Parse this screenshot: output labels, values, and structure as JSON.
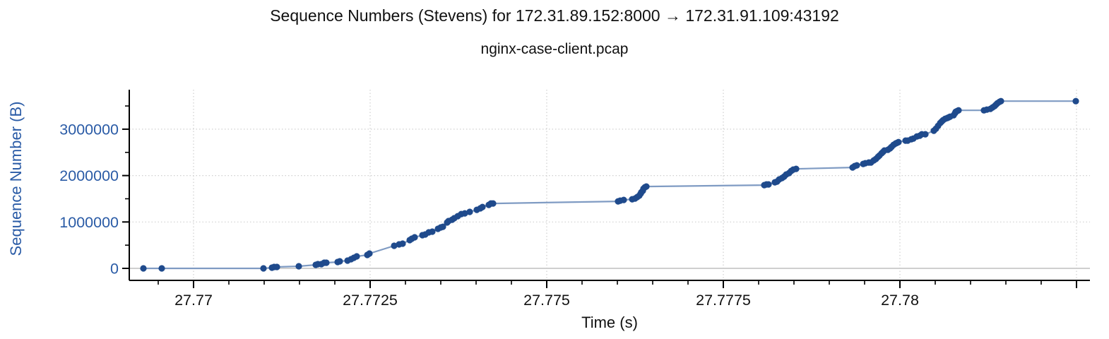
{
  "figure": {
    "title": "Sequence Numbers (Stevens) for 172.31.89.152:8000 → 172.31.91.109:43192",
    "subtitle": "nginx-case-client.pcap",
    "xlabel": "Time (s)",
    "ylabel": "Sequence Number (B)"
  },
  "chart_data": {
    "type": "scatter",
    "mode": "line+markers",
    "title": "Sequence Numbers (Stevens) for 172.31.89.152:8000 → 172.31.91.109:43192",
    "subtitle": "nginx-case-client.pcap",
    "xlabel": "Time (s)",
    "ylabel": "Sequence Number (B)",
    "legend": "none",
    "grid": {
      "major": "dotted",
      "zero_line": "solid"
    },
    "xlim": [
      27.76909,
      27.78269
    ],
    "ylim": [
      -259000,
      3851000
    ],
    "xticks": {
      "values": [
        27.77,
        27.7725,
        27.775,
        27.7775,
        27.78,
        27.7825
      ],
      "labels": [
        "27.77",
        "27.7725",
        "27.775",
        "27.7775",
        "27.78",
        ""
      ],
      "minor_start": 27.7695,
      "minor_step": 0.0005
    },
    "yticks": {
      "values": [
        0,
        1000000,
        2000000,
        3000000
      ],
      "labels": [
        "0",
        "1000000",
        "2000000",
        "3000000"
      ],
      "minor_values": [
        500000,
        1500000,
        2500000,
        3500000
      ]
    },
    "colors": {
      "marker": "#1f4a8c",
      "line": "#7f9bc3",
      "axis_label_blue": "#2a5ba6",
      "tick_text_black": "#111111",
      "grid": "#cfcfcf",
      "zero_line": "#c4c4c4",
      "spine": "#000000"
    },
    "series": [
      {
        "name": "sequence-numbers",
        "x": [
          27.76929,
          27.76955,
          27.77099,
          27.77111,
          27.77114,
          27.77118,
          27.77149,
          27.77173,
          27.77176,
          27.77181,
          27.77185,
          27.77188,
          27.77204,
          27.77207,
          27.77218,
          27.77223,
          27.77227,
          27.77231,
          27.77246,
          27.77249,
          27.77284,
          27.77291,
          27.77296,
          27.77306,
          27.77309,
          27.77313,
          27.77324,
          27.77328,
          27.77333,
          27.77338,
          27.77346,
          27.7735,
          27.77353,
          27.77359,
          27.77361,
          27.77366,
          27.77369,
          27.77374,
          27.77379,
          27.77384,
          27.77391,
          27.77401,
          27.77406,
          27.77409,
          27.77418,
          27.77421,
          27.77424,
          27.77601,
          27.77604,
          27.77609,
          27.77621,
          27.77625,
          27.77628,
          27.77631,
          27.77633,
          27.77634,
          27.77636,
          27.77637,
          27.77639,
          27.77641,
          27.77808,
          27.77811,
          27.77814,
          27.77823,
          27.77826,
          27.77829,
          27.77833,
          27.77836,
          27.77839,
          27.77843,
          27.77846,
          27.77849,
          27.77853,
          27.77933,
          27.77936,
          27.77939,
          27.77948,
          27.77951,
          27.77956,
          27.77959,
          27.77963,
          27.77966,
          27.77969,
          27.77971,
          27.77974,
          27.77976,
          27.77978,
          27.77983,
          27.77986,
          27.77988,
          27.77991,
          27.77994,
          27.77996,
          27.77998,
          27.78008,
          27.78011,
          27.78016,
          27.78019,
          27.78024,
          27.78028,
          27.78031,
          27.78036,
          27.78048,
          27.78051,
          27.78054,
          27.78057,
          27.78059,
          27.78061,
          27.78064,
          27.78067,
          27.78069,
          27.78071,
          27.78076,
          27.78078,
          27.78079,
          27.78081,
          27.78083,
          27.78119,
          27.78123,
          27.78128,
          27.78131,
          27.78134,
          27.78136,
          27.78138,
          27.78141,
          27.78143,
          27.78249
        ],
        "y": [
          0,
          0,
          0,
          15000,
          30000,
          30000,
          46000,
          76000,
          91000,
          91000,
          122000,
          122000,
          137000,
          152000,
          167000,
          198000,
          228000,
          259000,
          289000,
          319000,
          487000,
          517000,
          532000,
          608000,
          639000,
          669000,
          715000,
          730000,
          776000,
          791000,
          852000,
          882000,
          897000,
          989000,
          1019000,
          1049000,
          1080000,
          1125000,
          1171000,
          1186000,
          1217000,
          1262000,
          1293000,
          1323000,
          1369000,
          1399000,
          1399000,
          1445000,
          1460000,
          1475000,
          1490000,
          1506000,
          1536000,
          1567000,
          1612000,
          1643000,
          1673000,
          1719000,
          1749000,
          1764000,
          1795000,
          1810000,
          1810000,
          1855000,
          1871000,
          1916000,
          1947000,
          1977000,
          2023000,
          2053000,
          2099000,
          2129000,
          2144000,
          2175000,
          2205000,
          2221000,
          2251000,
          2266000,
          2281000,
          2281000,
          2327000,
          2357000,
          2403000,
          2433000,
          2479000,
          2509000,
          2540000,
          2555000,
          2586000,
          2616000,
          2662000,
          2692000,
          2707000,
          2722000,
          2753000,
          2753000,
          2783000,
          2798000,
          2844000,
          2859000,
          2890000,
          2890000,
          2966000,
          3011000,
          3072000,
          3133000,
          3163000,
          3194000,
          3224000,
          3240000,
          3255000,
          3270000,
          3300000,
          3346000,
          3376000,
          3392000,
          3407000,
          3407000,
          3422000,
          3437000,
          3468000,
          3498000,
          3528000,
          3559000,
          3589000,
          3605000,
          3605000
        ]
      }
    ]
  }
}
